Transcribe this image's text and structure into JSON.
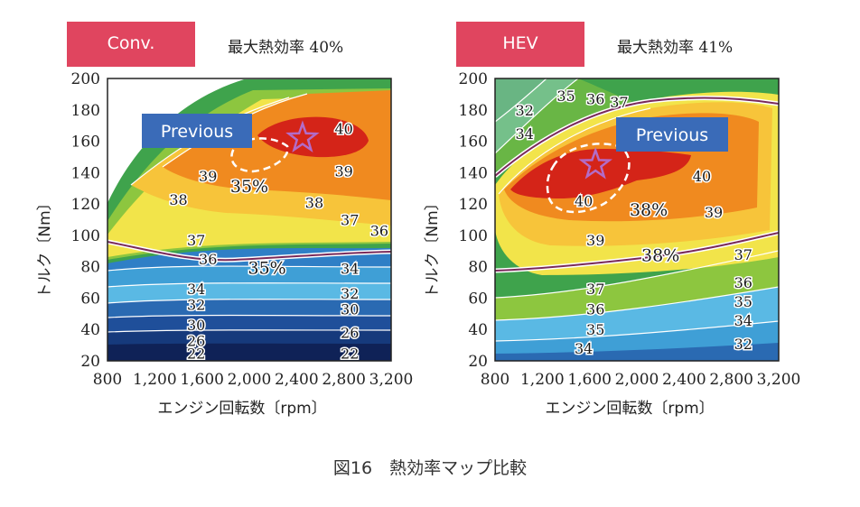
{
  "figure_caption": "図16　熱効率マップ比較",
  "chart_data": [
    {
      "type": "heatmap",
      "tag": "Conv.",
      "peak_label": "最大熱効率 40%",
      "xlabel": "エンジン回転数〔rpm〕",
      "ylabel": "トルク〔Nm〕",
      "xlim": [
        800,
        3200
      ],
      "ylim": [
        20,
        200
      ],
      "x_ticks": [
        "800",
        "1,200",
        "1,600",
        "2,000",
        "2,400",
        "2,800",
        "3,200"
      ],
      "y_ticks": [
        "20",
        "40",
        "60",
        "80",
        "100",
        "120",
        "140",
        "160",
        "180",
        "200"
      ],
      "previous_label": "Previous",
      "best_point": {
        "x": 2450,
        "y": 162
      },
      "contour_labels": [
        {
          "text": "40",
          "x": 2800,
          "y": 168
        },
        {
          "text": "39",
          "x": 1650,
          "y": 138
        },
        {
          "text": "39",
          "x": 2800,
          "y": 141
        },
        {
          "text": "35%",
          "x": 2000,
          "y": 131
        },
        {
          "text": "38",
          "x": 1400,
          "y": 123
        },
        {
          "text": "38",
          "x": 2550,
          "y": 121
        },
        {
          "text": "37",
          "x": 1550,
          "y": 97
        },
        {
          "text": "37",
          "x": 2850,
          "y": 110
        },
        {
          "text": "36",
          "x": 3100,
          "y": 103
        },
        {
          "text": "36",
          "x": 1650,
          "y": 85
        },
        {
          "text": "35%",
          "x": 2150,
          "y": 79
        },
        {
          "text": "34",
          "x": 1550,
          "y": 66
        },
        {
          "text": "34",
          "x": 2850,
          "y": 79
        },
        {
          "text": "32",
          "x": 1550,
          "y": 56
        },
        {
          "text": "32",
          "x": 2850,
          "y": 63
        },
        {
          "text": "30",
          "x": 1550,
          "y": 43
        },
        {
          "text": "30",
          "x": 2850,
          "y": 53
        },
        {
          "text": "26",
          "x": 1550,
          "y": 33
        },
        {
          "text": "26",
          "x": 2850,
          "y": 38
        },
        {
          "text": "22",
          "x": 1550,
          "y": 25
        },
        {
          "text": "22",
          "x": 2850,
          "y": 25
        }
      ]
    },
    {
      "type": "heatmap",
      "tag": "HEV",
      "peak_label": "最大熱効率 41%",
      "xlabel": "エンジン回転数〔rpm〕",
      "ylabel": "トルク〔Nm〕",
      "xlim": [
        800,
        3200
      ],
      "ylim": [
        20,
        200
      ],
      "x_ticks": [
        "800",
        "1,200",
        "1,600",
        "2,000",
        "2,400",
        "2,800",
        "3,200"
      ],
      "y_ticks": [
        "20",
        "40",
        "60",
        "80",
        "100",
        "120",
        "140",
        "160",
        "180",
        "200"
      ],
      "previous_label": "Previous",
      "best_point": {
        "x": 1650,
        "y": 145
      },
      "contour_labels": [
        {
          "text": "32",
          "x": 1050,
          "y": 180
        },
        {
          "text": "34",
          "x": 1050,
          "y": 165
        },
        {
          "text": "35",
          "x": 1400,
          "y": 189
        },
        {
          "text": "36",
          "x": 1650,
          "y": 187
        },
        {
          "text": "37",
          "x": 1850,
          "y": 185
        },
        {
          "text": "40",
          "x": 2550,
          "y": 138
        },
        {
          "text": "40",
          "x": 1550,
          "y": 122
        },
        {
          "text": "38%",
          "x": 2100,
          "y": 116
        },
        {
          "text": "39",
          "x": 2650,
          "y": 115
        },
        {
          "text": "39",
          "x": 1650,
          "y": 97
        },
        {
          "text": "38%",
          "x": 2200,
          "y": 87
        },
        {
          "text": "37",
          "x": 2900,
          "y": 88
        },
        {
          "text": "37",
          "x": 1650,
          "y": 66
        },
        {
          "text": "36",
          "x": 2900,
          "y": 70
        },
        {
          "text": "36",
          "x": 1650,
          "y": 53
        },
        {
          "text": "35",
          "x": 2900,
          "y": 58
        },
        {
          "text": "35",
          "x": 1650,
          "y": 40
        },
        {
          "text": "34",
          "x": 2900,
          "y": 46
        },
        {
          "text": "34",
          "x": 1550,
          "y": 28
        },
        {
          "text": "32",
          "x": 2900,
          "y": 31
        }
      ]
    }
  ],
  "colors": {
    "tag": "#e0455f",
    "previous_box": "#3a6bb8",
    "star": "#b36cc8",
    "boundary_line": "#7a2a5a"
  }
}
